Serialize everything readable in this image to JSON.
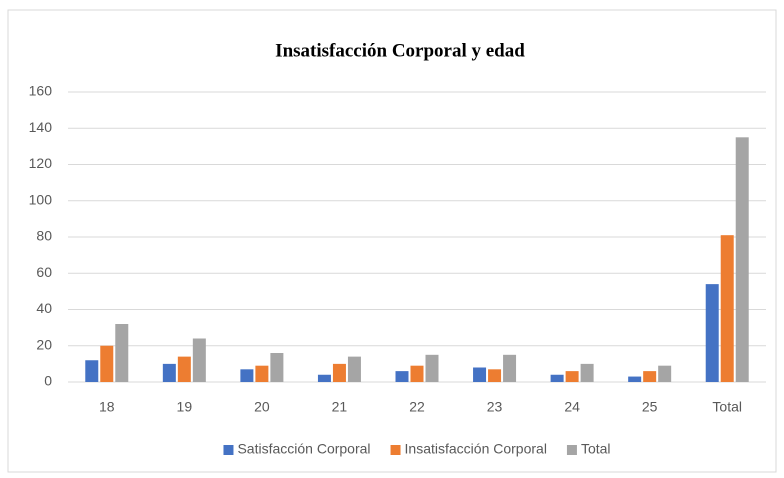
{
  "chart_data": {
    "type": "bar",
    "title": "Insatisfacción Corporal y edad",
    "categories": [
      "18",
      "19",
      "20",
      "21",
      "22",
      "23",
      "24",
      "25",
      "Total"
    ],
    "series": [
      {
        "name": "Satisfacción Corporal",
        "color": "#4472c4",
        "values": [
          12,
          10,
          7,
          4,
          6,
          8,
          4,
          3,
          54
        ]
      },
      {
        "name": "Insatisfacción Corporal",
        "color": "#ed7d31",
        "values": [
          20,
          14,
          9,
          10,
          9,
          7,
          6,
          6,
          81
        ]
      },
      {
        "name": "Total",
        "color": "#a5a5a5",
        "values": [
          32,
          24,
          16,
          14,
          15,
          15,
          10,
          9,
          135
        ]
      }
    ],
    "ylim": [
      0,
      160
    ],
    "yticks": [
      0,
      20,
      40,
      60,
      80,
      100,
      120,
      140,
      160
    ],
    "grid": true,
    "legend": "bottom"
  }
}
